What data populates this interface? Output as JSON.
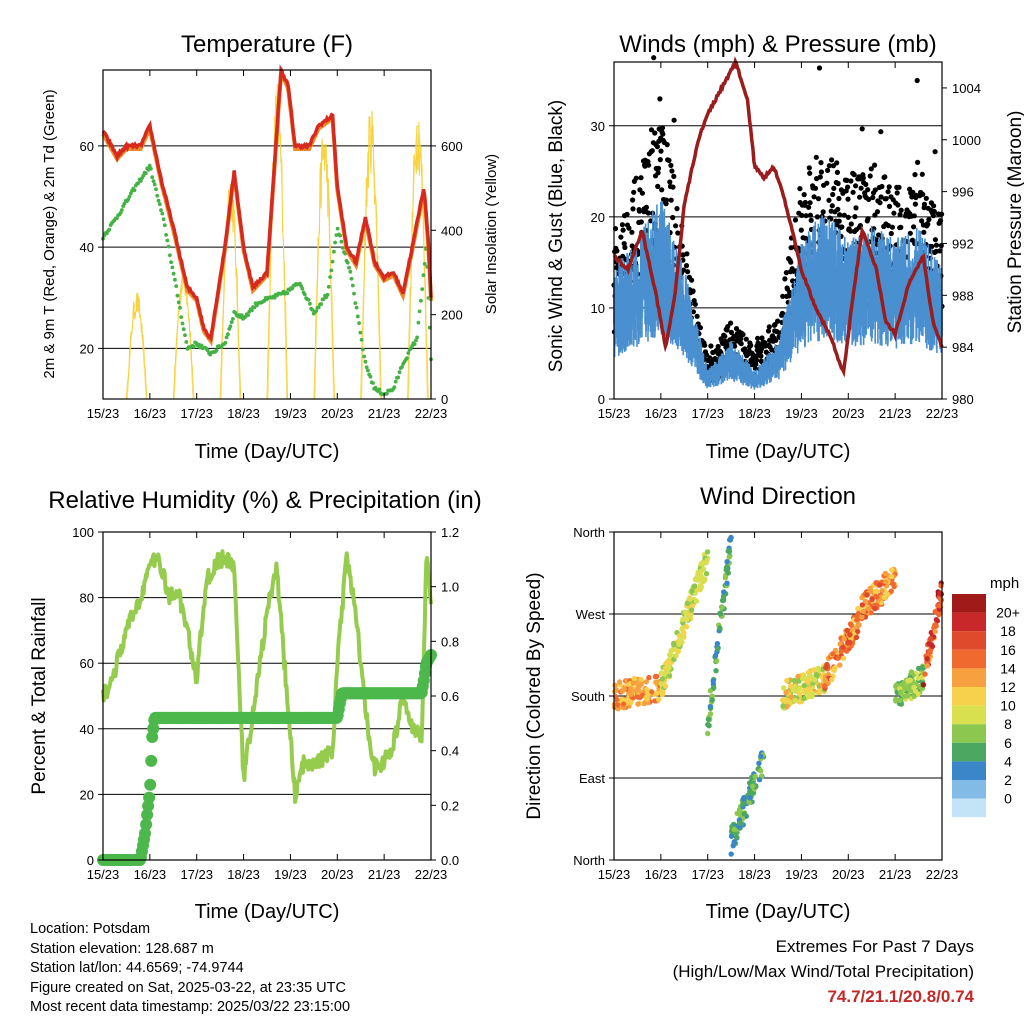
{
  "x_ticks": [
    "15/23",
    "16/23",
    "17/23",
    "18/23",
    "19/23",
    "20/23",
    "21/23",
    "22/23"
  ],
  "x_label": "Time (Day/UTC)",
  "colors": {
    "temp": "#d62a1f",
    "temp_alt": "#ef8a2a",
    "dewpoint": "#45b245",
    "solar": "#f7d23c",
    "wind": "#4a90d0",
    "gust": "#000000",
    "pressure": "#9b1c1c",
    "rh": "#96cc4e",
    "precip": "#4cb84c"
  },
  "panels": {
    "temperature": {
      "title": "Temperature (F)",
      "ylabel_left": "2m & 9m T (Red, Orange) & 2m Td (Green)",
      "ylabel_right": "Solar Insolation (Yellow)",
      "y_ticks_left": [
        "20",
        "40",
        "60"
      ],
      "y_ticks_right": [
        "0",
        "200",
        "400",
        "600"
      ]
    },
    "winds": {
      "title": "Winds (mph) & Pressure (mb)",
      "ylabel_left": "Sonic Wind & Gust (Blue, Black)",
      "ylabel_right": "Station Pressure (Maroon)",
      "y_ticks_left": [
        "0",
        "10",
        "20",
        "30"
      ],
      "y_ticks_right": [
        "980",
        "984",
        "988",
        "992",
        "996",
        "1000",
        "1004"
      ]
    },
    "humidity": {
      "title": "Relative Humidity (%) & Precipitation (in)",
      "ylabel_left": "Percent & Total Rainfall",
      "y_ticks_left": [
        "0",
        "20",
        "40",
        "60",
        "80",
        "100"
      ],
      "y_ticks_right": [
        "0.0",
        "0.2",
        "0.4",
        "0.6",
        "0.8",
        "1.0",
        "1.2"
      ]
    },
    "direction": {
      "title": "Wind Direction",
      "ylabel_left": "Direction (Colored By Speed)",
      "y_ticks_left": [
        "North",
        "East",
        "South",
        "West",
        "North"
      ],
      "legend_title": "mph",
      "legend_labels": [
        "20+",
        "18",
        "16",
        "14",
        "12",
        "10",
        "8",
        "6",
        "4",
        "2",
        "0"
      ],
      "legend_colors": [
        "#a01a1a",
        "#c8282a",
        "#e04a2c",
        "#f06a30",
        "#f7a040",
        "#f7d04c",
        "#d8e050",
        "#8cc850",
        "#4ca860",
        "#3a86c8",
        "#82bce6",
        "#c2e4f6"
      ]
    }
  },
  "chart_data": [
    {
      "type": "line",
      "title": "Temperature (F)",
      "xlabel": "Time (Day/UTC)",
      "ylabel": "2m & 9m T (Red, Orange) & 2m Td (Green)",
      "y2label": "Solar Insolation (Yellow)",
      "xlim": [
        0,
        7
      ],
      "ylim": [
        10,
        75
      ],
      "y2lim": [
        0,
        780
      ],
      "x_ticks": [
        "15/23",
        "16/23",
        "17/23",
        "18/23",
        "19/23",
        "20/23",
        "21/23",
        "22/23"
      ],
      "series": [
        {
          "name": "2m & 9m T",
          "axis": "left",
          "x": [
            0,
            0.3,
            0.5,
            0.8,
            1.0,
            1.25,
            1.5,
            1.8,
            2.0,
            2.15,
            2.3,
            2.6,
            2.8,
            3.0,
            3.2,
            3.5,
            3.8,
            3.95,
            4.1,
            4.4,
            4.6,
            4.9,
            5.0,
            5.2,
            5.4,
            5.6,
            5.8,
            6.0,
            6.2,
            6.4,
            6.6,
            6.85,
            6.95,
            7.0
          ],
          "y": [
            63,
            58,
            60,
            60,
            64,
            53,
            44,
            32,
            30,
            24,
            22,
            40,
            55,
            40,
            32,
            35,
            75,
            72,
            60,
            60,
            64,
            66,
            52,
            40,
            37,
            46,
            37,
            34,
            35,
            31,
            40,
            52,
            40,
            30
          ]
        },
        {
          "name": "2m Td",
          "axis": "left",
          "x": [
            0,
            0.3,
            0.7,
            1.0,
            1.3,
            1.6,
            1.8,
            2.0,
            2.3,
            2.6,
            2.8,
            3.0,
            3.3,
            3.6,
            3.9,
            4.2,
            4.5,
            4.8,
            5.0,
            5.3,
            5.6,
            5.8,
            6.0,
            6.2,
            6.4,
            6.7,
            6.9,
            7.0
          ],
          "y": [
            42,
            46,
            52,
            56,
            45,
            30,
            20,
            21,
            19,
            21,
            27,
            26,
            29,
            30,
            31,
            33,
            27,
            31,
            44,
            34,
            17,
            12,
            11,
            12,
            17,
            22,
            40,
            18
          ]
        },
        {
          "name": "Solar Insolation",
          "axis": "right",
          "peaks": [
            {
              "x": 0.72,
              "y": 260
            },
            {
              "x": 1.72,
              "y": 330
            },
            {
              "x": 2.72,
              "y": 560
            },
            {
              "x": 3.72,
              "y": 760
            },
            {
              "x": 4.72,
              "y": 670
            },
            {
              "x": 5.72,
              "y": 710
            },
            {
              "x": 6.72,
              "y": 720
            }
          ]
        }
      ]
    },
    {
      "type": "scatter",
      "title": "Winds (mph) & Pressure (mb)",
      "xlabel": "Time (Day/UTC)",
      "ylabel": "Sonic Wind & Gust (Blue, Black)",
      "y2label": "Station Pressure (Maroon)",
      "xlim": [
        0,
        7
      ],
      "ylim": [
        0,
        37
      ],
      "y2lim": [
        980,
        1006
      ],
      "series": [
        {
          "name": "Sonic Wind",
          "mean": {
            "x": [
              0,
              0.5,
              1.0,
              1.5,
              2.0,
              2.5,
              3.0,
              3.5,
              4.0,
              4.5,
              5.0,
              5.5,
              6.0,
              6.5,
              7.0
            ],
            "y": [
              9,
              11,
              14,
              9,
              2,
              4,
              2,
              4,
              11,
              13,
              11,
              12,
              11,
              12,
              9
            ]
          }
        },
        {
          "name": "Gust",
          "mean": {
            "x": [
              0,
              0.5,
              1.0,
              1.5,
              2.0,
              2.5,
              3.0,
              3.5,
              4.0,
              4.5,
              5.0,
              5.5,
              6.0,
              6.5,
              7.0
            ],
            "y": [
              13,
              17,
              23,
              12,
              3,
              6,
              4,
              6,
              17,
              19,
              17,
              18,
              16,
              18,
              14
            ]
          }
        },
        {
          "name": "Station Pressure",
          "axis": "right",
          "x": [
            0,
            0.3,
            0.6,
            0.9,
            1.1,
            1.3,
            1.5,
            1.8,
            2.0,
            2.3,
            2.6,
            2.85,
            3.0,
            3.2,
            3.4,
            3.6,
            3.8,
            4.0,
            4.3,
            4.6,
            4.9,
            5.1,
            5.3,
            5.6,
            5.8,
            6.0,
            6.3,
            6.6,
            6.8,
            7.0
          ],
          "y": [
            991,
            990,
            993,
            988,
            984,
            988,
            995,
            1000,
            1002,
            1004,
            1006,
            1003,
            998,
            997,
            998,
            996,
            993,
            990,
            987,
            985,
            982,
            988,
            993,
            990,
            986,
            985,
            989,
            991,
            986,
            984
          ]
        }
      ]
    },
    {
      "type": "line",
      "title": "Relative Humidity (%) & Precipitation (in)",
      "xlabel": "Time (Day/UTC)",
      "ylabel": "Percent & Total Rainfall",
      "xlim": [
        0,
        7
      ],
      "ylim": [
        0,
        100
      ],
      "y2lim": [
        0,
        1.2
      ],
      "series": [
        {
          "name": "Relative Humidity",
          "axis": "left",
          "x": [
            0,
            0.2,
            0.5,
            0.8,
            1.0,
            1.2,
            1.4,
            1.6,
            1.8,
            2.0,
            2.2,
            2.5,
            2.8,
            2.9,
            3.0,
            3.2,
            3.5,
            3.7,
            3.9,
            4.1,
            4.3,
            4.6,
            4.9,
            5.0,
            5.2,
            5.4,
            5.6,
            5.8,
            6.0,
            6.2,
            6.4,
            6.6,
            6.8,
            6.9,
            7.0
          ],
          "y": [
            50,
            55,
            70,
            80,
            90,
            92,
            80,
            82,
            70,
            55,
            85,
            92,
            90,
            55,
            25,
            45,
            75,
            90,
            55,
            20,
            30,
            30,
            33,
            60,
            92,
            75,
            45,
            28,
            30,
            35,
            50,
            40,
            37,
            92,
            80
          ]
        },
        {
          "name": "Total Rainfall",
          "axis": "right",
          "x": [
            0,
            0.8,
            0.85,
            0.9,
            0.95,
            1.0,
            1.05,
            1.1,
            1.2,
            5.0,
            5.05,
            5.1,
            6.8,
            6.85,
            6.9,
            7.0
          ],
          "y": [
            0,
            0.0,
            0.05,
            0.1,
            0.18,
            0.25,
            0.45,
            0.52,
            0.52,
            0.52,
            0.57,
            0.61,
            0.61,
            0.66,
            0.72,
            0.75
          ]
        }
      ]
    },
    {
      "type": "scatter",
      "title": "Wind Direction",
      "xlabel": "Time (Day/UTC)",
      "ylabel": "Direction (Colored By Speed)",
      "xlim": [
        0,
        7
      ],
      "ylim": [
        0,
        360
      ],
      "y_ticks": [
        "North",
        "East",
        "South",
        "West",
        "North"
      ],
      "series": [
        {
          "name": "Direction",
          "clusters": [
            {
              "x": [
                0,
                1.0
              ],
              "y": [
                180,
                190
              ],
              "speed": [
                10,
                14
              ]
            },
            {
              "x": [
                1.0,
                2.0
              ],
              "y": [
                190,
                330
              ],
              "speed": [
                6,
                10
              ]
            },
            {
              "x": [
                2.0,
                2.5
              ],
              "y": [
                150,
                350
              ],
              "speed": [
                2,
                6
              ]
            },
            {
              "x": [
                2.5,
                3.2
              ],
              "y": [
                20,
                110
              ],
              "speed": [
                2,
                6
              ]
            },
            {
              "x": [
                3.6,
                4.5
              ],
              "y": [
                180,
                200
              ],
              "speed": [
                6,
                12
              ]
            },
            {
              "x": [
                4.5,
                5.2
              ],
              "y": [
                200,
                260
              ],
              "speed": [
                10,
                16
              ]
            },
            {
              "x": [
                5.2,
                6.0
              ],
              "y": [
                270,
                310
              ],
              "speed": [
                10,
                16
              ]
            },
            {
              "x": [
                6.0,
                6.6
              ],
              "y": [
                180,
                200
              ],
              "speed": [
                4,
                8
              ]
            },
            {
              "x": [
                6.6,
                7.0
              ],
              "y": [
                200,
                300
              ],
              "speed": [
                12,
                20
              ]
            }
          ]
        }
      ]
    }
  ],
  "info": {
    "location": "Location: Potsdam",
    "elevation": "Station elevation: 128.687 m",
    "latlon": "Station lat/lon: 44.6569; -74.9744",
    "created": "Figure created on Sat, 2025-03-22, at 23:35 UTC",
    "recent": "Most recent data timestamp: 2025/03/22 23:15:00"
  },
  "extremes": {
    "title": "Extremes For Past 7 Days",
    "subtitle": "(High/Low/Max Wind/Total Precipitation)",
    "values": "74.7/21.1/20.8/0.74"
  }
}
